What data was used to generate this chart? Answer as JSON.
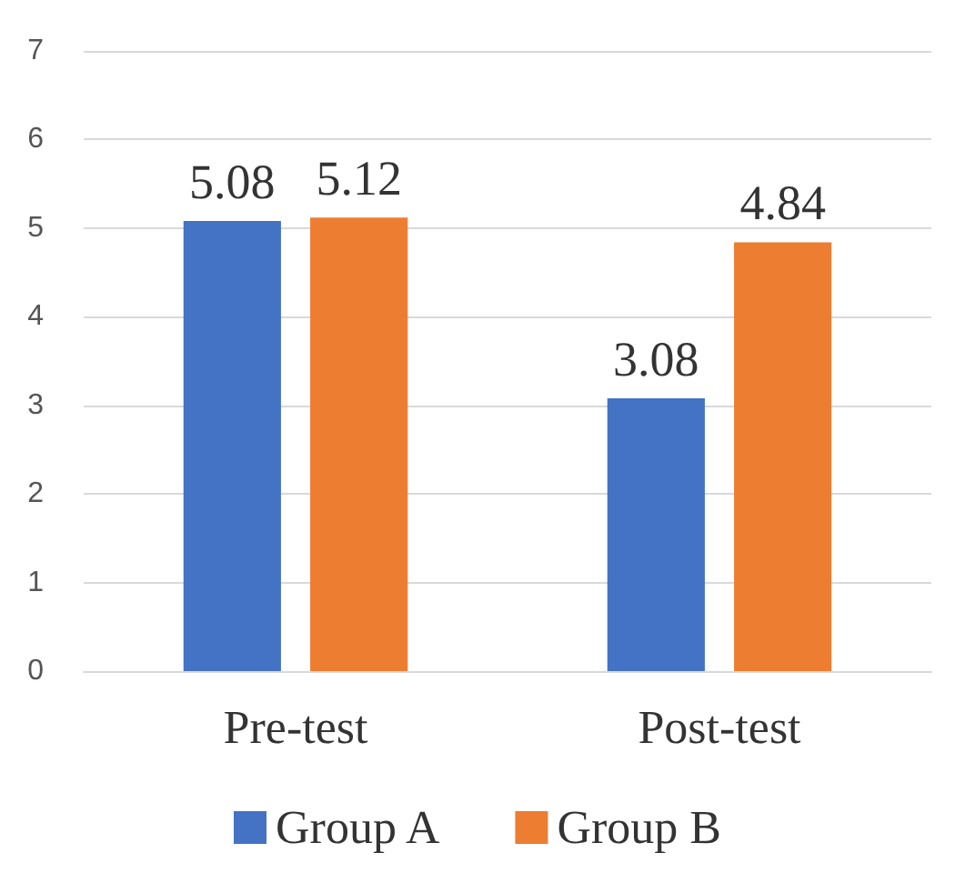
{
  "chart_data": {
    "type": "bar",
    "categories": [
      "Pre-test",
      "Post-test"
    ],
    "series": [
      {
        "name": "Group A",
        "color": "#4472c4",
        "values": [
          5.08,
          3.08
        ]
      },
      {
        "name": "Group B",
        "color": "#ed7d31",
        "values": [
          5.12,
          4.84
        ]
      }
    ],
    "ylim": [
      0,
      7
    ],
    "yticks": [
      0,
      1,
      2,
      3,
      4,
      5,
      6,
      7
    ],
    "grid": "y",
    "legend": "bottom",
    "data_labels": true
  }
}
